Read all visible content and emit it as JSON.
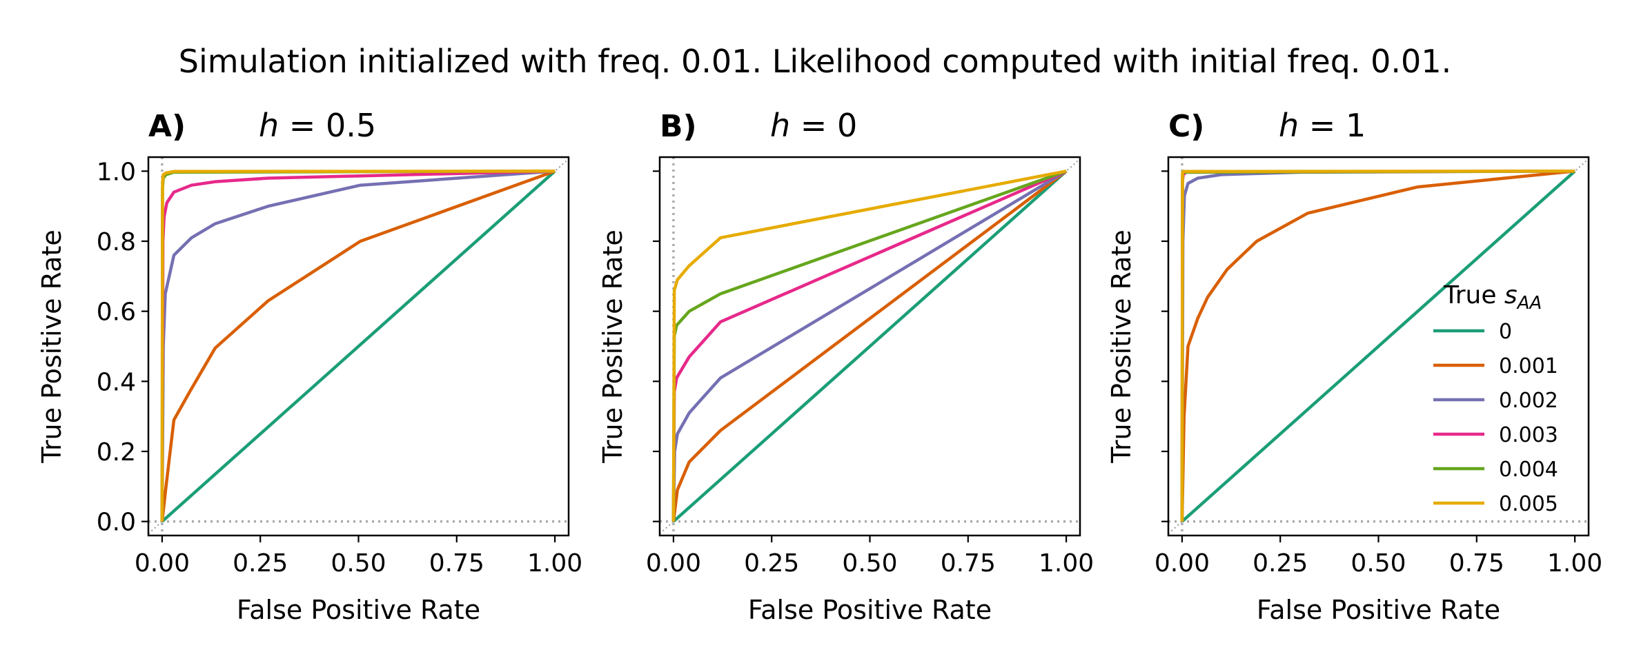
{
  "suptitle": "Simulation initialized with freq. 0.01. Likelihood computed with initial freq. 0.01.",
  "colors": {
    "0": "#1b9e77",
    "0.001": "#d95f02",
    "0.002": "#7570b3",
    "0.003": "#e7298a",
    "0.004": "#66a61e",
    "0.005": "#e6ab02",
    "refline": "#aaaaaa",
    "diagonal": "#999999"
  },
  "legend": {
    "title_prefix": "True ",
    "title_symbol": "s",
    "title_subscript": "AA",
    "placement": "lower-right of panel C",
    "entries": [
      "0",
      "0.001",
      "0.002",
      "0.003",
      "0.004",
      "0.005"
    ]
  },
  "axes_common": {
    "xlabel": "False Positive Rate",
    "ylabel": "True Positive Rate",
    "xlim": [
      -0.035,
      1.035
    ],
    "ylim": [
      -0.04,
      1.04
    ],
    "xticks": [
      0,
      0.25,
      0.5,
      0.75,
      1.0
    ],
    "xtick_labels": [
      "0.00",
      "0.25",
      "0.50",
      "0.75",
      "1.00"
    ],
    "yticks": [
      0,
      0.2,
      0.4,
      0.6,
      0.8,
      1.0
    ],
    "ytick_labels": [
      "0.0",
      "0.2",
      "0.4",
      "0.6",
      "0.8",
      "1.0"
    ]
  },
  "panels": [
    {
      "label": "A)",
      "h_symbol": "h",
      "h_value": " = 0.5",
      "show_ytick_labels": true
    },
    {
      "label": "B)",
      "h_symbol": "h",
      "h_value": " = 0",
      "show_ytick_labels": false
    },
    {
      "label": "C)",
      "h_symbol": "h",
      "h_value": " = 1",
      "show_ytick_labels": false
    }
  ],
  "chart_data": [
    {
      "type": "line",
      "title": "h = 0.5",
      "xlabel": "False Positive Rate",
      "ylabel": "True Positive Rate",
      "grid": false,
      "reference_lines": [
        "x = 0 (dotted)",
        "y = 0 (dotted)",
        "y = x (dotted)"
      ],
      "series": [
        {
          "name": "0",
          "x": [
            0,
            1
          ],
          "y": [
            0,
            1
          ]
        },
        {
          "name": "0.001",
          "x": [
            0,
            0.01,
            0.03,
            0.07,
            0.135,
            0.27,
            0.505,
            1.0
          ],
          "y": [
            0,
            0.1,
            0.29,
            0.37,
            0.495,
            0.63,
            0.8,
            1.0
          ]
        },
        {
          "name": "0.002",
          "x": [
            0,
            0.003,
            0.008,
            0.03,
            0.075,
            0.135,
            0.27,
            0.505,
            1.0
          ],
          "y": [
            0,
            0.5,
            0.65,
            0.76,
            0.81,
            0.85,
            0.9,
            0.96,
            1.0
          ]
        },
        {
          "name": "0.003",
          "x": [
            0,
            0.002,
            0.005,
            0.012,
            0.03,
            0.075,
            0.135,
            0.27,
            1.0
          ],
          "y": [
            0,
            0.8,
            0.87,
            0.91,
            0.94,
            0.96,
            0.97,
            0.98,
            1.0
          ]
        },
        {
          "name": "0.004",
          "x": [
            0,
            0.001,
            0.003,
            0.01,
            0.03,
            1.0
          ],
          "y": [
            0,
            0.95,
            0.98,
            0.99,
            0.997,
            1.0
          ]
        },
        {
          "name": "0.005",
          "x": [
            0,
            0.001,
            0.003,
            0.01,
            0.03,
            1.0
          ],
          "y": [
            0,
            0.97,
            0.99,
            0.995,
            0.999,
            1.0
          ]
        }
      ]
    },
    {
      "type": "line",
      "title": "h = 0",
      "xlabel": "False Positive Rate",
      "ylabel": "True Positive Rate",
      "grid": false,
      "reference_lines": [
        "x = 0 (dotted)",
        "y = 0 (dotted)",
        "y = x (dotted)"
      ],
      "series": [
        {
          "name": "0",
          "x": [
            0,
            1
          ],
          "y": [
            0,
            1
          ]
        },
        {
          "name": "0.001",
          "x": [
            0,
            0.01,
            0.04,
            0.12,
            1.0
          ],
          "y": [
            0,
            0.09,
            0.17,
            0.26,
            1.0
          ]
        },
        {
          "name": "0.002",
          "x": [
            0,
            0.003,
            0.01,
            0.04,
            0.12,
            1.0
          ],
          "y": [
            0,
            0.2,
            0.25,
            0.31,
            0.41,
            1.0
          ]
        },
        {
          "name": "0.003",
          "x": [
            0,
            0.002,
            0.008,
            0.04,
            0.12,
            1.0
          ],
          "y": [
            0,
            0.37,
            0.41,
            0.47,
            0.57,
            1.0
          ]
        },
        {
          "name": "0.004",
          "x": [
            0,
            0.002,
            0.008,
            0.04,
            0.12,
            1.0
          ],
          "y": [
            0,
            0.53,
            0.56,
            0.6,
            0.65,
            1.0
          ]
        },
        {
          "name": "0.005",
          "x": [
            0,
            0.002,
            0.01,
            0.04,
            0.12,
            1.0
          ],
          "y": [
            0,
            0.66,
            0.69,
            0.73,
            0.81,
            1.0
          ]
        }
      ]
    },
    {
      "type": "line",
      "title": "h = 1",
      "xlabel": "False Positive Rate",
      "ylabel": "True Positive Rate",
      "grid": false,
      "reference_lines": [
        "x = 0 (dotted)",
        "y = 0 (dotted)",
        "y = x (dotted)"
      ],
      "series": [
        {
          "name": "0",
          "x": [
            0,
            1
          ],
          "y": [
            0,
            1
          ]
        },
        {
          "name": "0.001",
          "x": [
            0,
            0.005,
            0.015,
            0.04,
            0.065,
            0.115,
            0.19,
            0.32,
            0.6,
            1.0
          ],
          "y": [
            0,
            0.3,
            0.5,
            0.58,
            0.64,
            0.72,
            0.8,
            0.88,
            0.955,
            1.0
          ]
        },
        {
          "name": "0.002",
          "x": [
            0,
            0.002,
            0.006,
            0.015,
            0.04,
            0.1,
            0.3,
            1.0
          ],
          "y": [
            0,
            0.8,
            0.93,
            0.965,
            0.98,
            0.99,
            0.997,
            1.0
          ]
        },
        {
          "name": "0.003",
          "x": [
            0,
            0.001,
            0.003,
            0.01,
            1.0
          ],
          "y": [
            0,
            0.97,
            0.99,
            0.997,
            1.0
          ]
        },
        {
          "name": "0.004",
          "x": [
            0,
            0.001,
            0.003,
            1.0
          ],
          "y": [
            0,
            0.99,
            0.997,
            1.0
          ]
        },
        {
          "name": "0.005",
          "x": [
            0,
            0.001,
            0.003,
            1.0
          ],
          "y": [
            0,
            0.995,
            0.999,
            1.0
          ]
        }
      ]
    }
  ]
}
